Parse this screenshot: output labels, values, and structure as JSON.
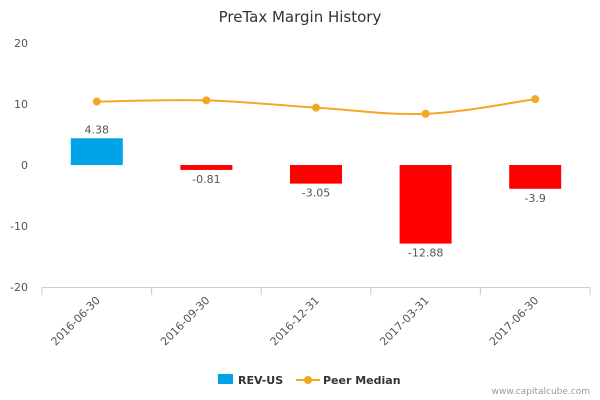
{
  "chart_data": {
    "type": "bar",
    "title": "PreTax Margin History",
    "categories": [
      "2016-06-30",
      "2016-09-30",
      "2016-12-31",
      "2017-03-31",
      "2017-06-30"
    ],
    "series": [
      {
        "name": "REV-US",
        "type": "bar",
        "values": [
          4.38,
          -0.81,
          -3.05,
          -12.88,
          -3.9
        ],
        "labels": [
          "4.38",
          "-0.81",
          "-3.05",
          "-12.88",
          "-3.9"
        ],
        "color_positive": "#00a2e8",
        "color_negative": "#ff0000"
      },
      {
        "name": "Peer Median",
        "type": "line",
        "values": [
          10.4,
          10.6,
          9.4,
          8.4,
          10.8
        ],
        "color": "#f5a623"
      }
    ],
    "yticks": [
      20,
      10,
      0,
      -10,
      -20
    ],
    "ylim": [
      -20,
      20
    ],
    "legend_position": "bottom",
    "grid": false
  },
  "credit": "www.capitalcube.com"
}
